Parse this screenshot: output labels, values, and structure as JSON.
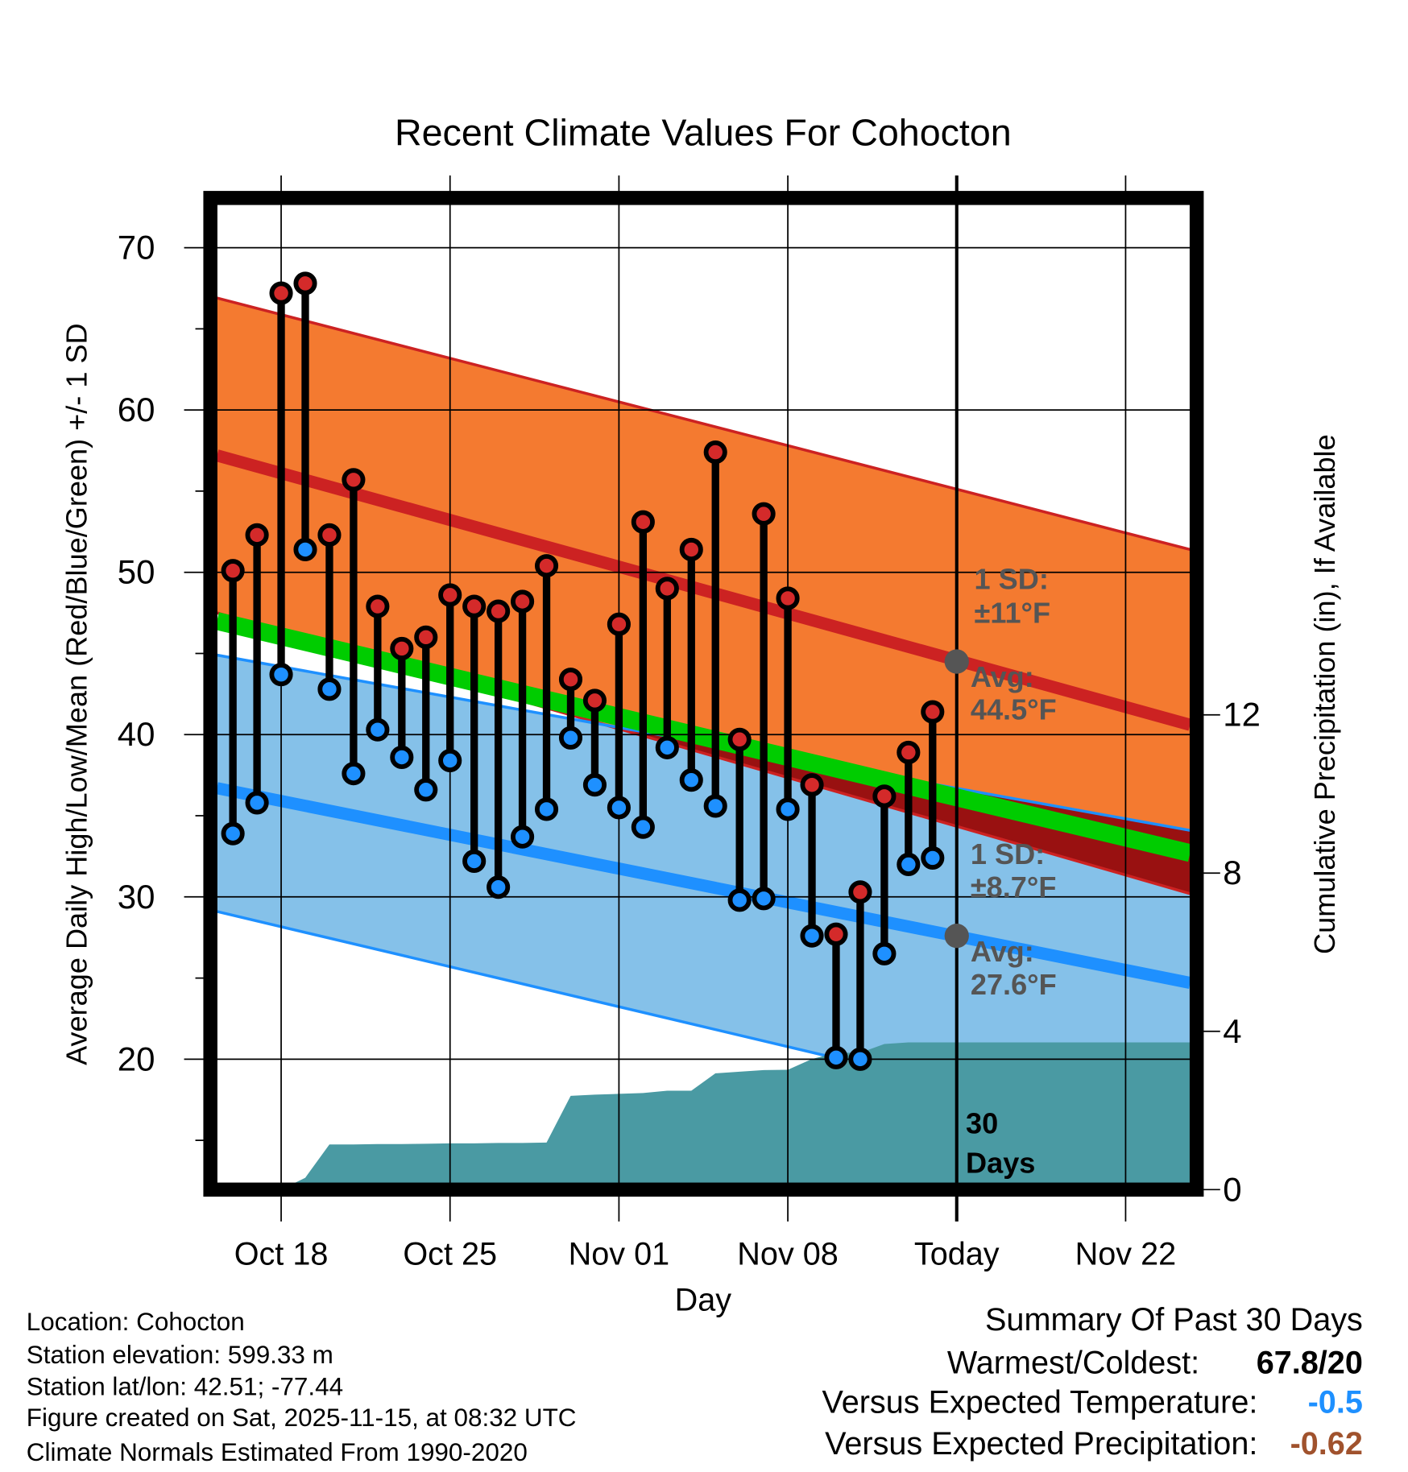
{
  "chart_data": {
    "type": "line",
    "title": "Recent Climate Values For Cohocton",
    "xlabel": "Day",
    "ylabel": "Average Daily High/Low/Mean (Red/Blue/Green) +/- 1 SD",
    "y2label": "Cumulative Precipitation (in), If Available",
    "ylim": [
      12.4,
      72.7
    ],
    "y2lim": [
      0,
      14.3
    ],
    "yticks": [
      "70",
      "60",
      "50",
      "40",
      "30",
      "20"
    ],
    "yticks_values": [
      70,
      60,
      50,
      40,
      30,
      20
    ],
    "y2ticks": [
      "12",
      "8",
      "4",
      "0"
    ],
    "y2ticks_values": [
      12,
      8,
      4,
      0
    ],
    "xticks": [
      "Oct 18",
      "Oct 25",
      "Nov 01",
      "Nov 08",
      "Today",
      "Nov 22"
    ],
    "xticks_day_index": [
      2,
      9,
      16,
      23,
      30,
      37
    ],
    "dates": [
      "Oct 16",
      "Oct 17",
      "Oct 18",
      "Oct 19",
      "Oct 20",
      "Oct 21",
      "Oct 22",
      "Oct 23",
      "Oct 24",
      "Oct 25",
      "Oct 26",
      "Oct 27",
      "Oct 28",
      "Oct 29",
      "Oct 30",
      "Oct 31",
      "Nov 01",
      "Nov 02",
      "Nov 03",
      "Nov 04",
      "Nov 05",
      "Nov 06",
      "Nov 07",
      "Nov 08",
      "Nov 09",
      "Nov 10",
      "Nov 11",
      "Nov 12",
      "Nov 13",
      "Nov 14"
    ],
    "series": [
      {
        "name": "Daily High",
        "color": "#d42a2a",
        "values": [
          50.1,
          52.3,
          67.2,
          67.8,
          52.3,
          55.7,
          47.9,
          45.3,
          46.0,
          48.6,
          47.9,
          47.6,
          48.2,
          50.4,
          43.4,
          42.1,
          46.8,
          53.1,
          49.0,
          51.4,
          57.4,
          39.7,
          53.6,
          48.4,
          36.9,
          27.7,
          30.3,
          36.2,
          38.9,
          41.4
        ]
      },
      {
        "name": "Daily Low",
        "color": "#1e90ff",
        "values": [
          33.9,
          35.8,
          43.7,
          51.4,
          42.8,
          37.6,
          40.3,
          38.6,
          36.6,
          38.4,
          32.2,
          30.6,
          33.7,
          35.4,
          39.8,
          36.9,
          35.5,
          34.3,
          39.2,
          37.2,
          35.6,
          29.8,
          29.9,
          35.4,
          27.6,
          20.1,
          20.0,
          26.5,
          32.0,
          32.4
        ]
      },
      {
        "name": "Cumulative Precipitation",
        "color": "#4a9aa3",
        "values": [
          0,
          0,
          0,
          0.3,
          1.14,
          1.14,
          1.15,
          1.15,
          1.16,
          1.17,
          1.17,
          1.18,
          1.18,
          1.19,
          2.37,
          2.4,
          2.42,
          2.44,
          2.5,
          2.5,
          2.94,
          2.98,
          3.02,
          3.03,
          3.3,
          3.46,
          3.46,
          3.68,
          3.72,
          3.72
        ]
      }
    ],
    "normals": {
      "range_dates": [
        "Oct 15",
        "Nov 25"
      ],
      "high_avg": [
        57.2,
        40.6
      ],
      "high_plus_sd": [
        66.9,
        51.4
      ],
      "high_minus_sd": [
        47.5,
        30.2
      ],
      "low_avg": [
        36.7,
        24.7
      ],
      "low_plus_sd": [
        44.9,
        34.1
      ],
      "low_minus_sd": [
        29.1,
        14.9
      ],
      "mean": [
        47.0,
        32.7
      ]
    },
    "annotations": {
      "high_sd": [
        "1 SD:",
        "±11°F"
      ],
      "high_avg": [
        "Avg:",
        "44.5°F"
      ],
      "low_sd": [
        "1 SD:",
        "±8.7°F"
      ],
      "low_avg": [
        "Avg:",
        "27.6°F"
      ],
      "period": [
        "30",
        "Days"
      ]
    },
    "today_high_avg": 44.5,
    "today_low_avg": 27.6,
    "grid": true,
    "colors": {
      "orange_band": "#f47a30",
      "blue_band": "#85c1e9",
      "high_line": "#cc2222",
      "low_line": "#1e90ff",
      "mean_band": "#00cc00",
      "overlap": "#991111",
      "precip": "#4a9aa3",
      "annotation": "#555555"
    }
  },
  "info": {
    "location": "Location: Cohocton",
    "elevation": "Station elevation: 599.33 m",
    "latlon": "Station lat/lon: 42.51; -77.44",
    "created": "Figure created on Sat, 2025-11-15, at 08:32 UTC",
    "normals": "Climate Normals Estimated From 1990-2020"
  },
  "summary": {
    "title": "Summary Of Past 30 Days",
    "warmest_label": "Warmest/Coldest:",
    "warmest_value": "67.8/20",
    "temp_label": "Versus Expected Temperature:",
    "temp_value": "-0.5",
    "temp_color": "#1e90ff",
    "precip_label": "Versus Expected Precipitation:",
    "precip_value": "-0.62",
    "precip_color": "#a0522d"
  }
}
